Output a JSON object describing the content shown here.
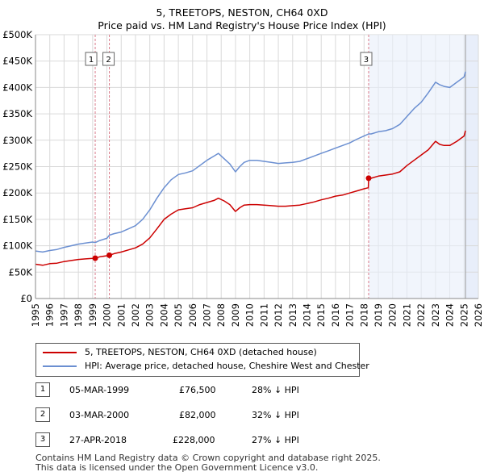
{
  "title_line1": "5, TREETOPS, NESTON, CH64 0XD",
  "title_line2": "Price paid vs. HM Land Registry's House Price Index (HPI)",
  "colors": {
    "price_paid": "#cc0000",
    "hpi": "#6b8fd1",
    "shade": "#e8eefa",
    "grid": "#d9d9d9",
    "marker_line": "#d97a8a"
  },
  "legend": {
    "series1_label": "5, TREETOPS, NESTON, CH64 0XD (detached house)",
    "series2_label": "HPI: Average price, detached house, Cheshire West and Chester"
  },
  "transactions": [
    {
      "id": "1",
      "date": "05-MAR-1999",
      "price": "£76,500",
      "delta": "28% ↓ HPI"
    },
    {
      "id": "2",
      "date": "03-MAR-2000",
      "price": "£82,000",
      "delta": "32% ↓ HPI"
    },
    {
      "id": "3",
      "date": "27-APR-2018",
      "price": "£228,000",
      "delta": "27% ↓ HPI"
    }
  ],
  "footer": {
    "line1": "Contains HM Land Registry data © Crown copyright and database right 2025.",
    "line2": "This data is licensed under the Open Government Licence v3.0."
  },
  "chart_data": {
    "type": "line",
    "title": "5, TREETOPS, NESTON, CH64 0XD — Price paid vs. HM Land Registry's House Price Index (HPI)",
    "xlabel": "",
    "ylabel": "",
    "xlim": [
      1995,
      2026
    ],
    "ylim": [
      0,
      500000
    ],
    "x_ticks": [
      1995,
      1996,
      1997,
      1998,
      1999,
      2000,
      2001,
      2002,
      2003,
      2004,
      2005,
      2006,
      2007,
      2008,
      2009,
      2010,
      2011,
      2012,
      2013,
      2014,
      2015,
      2016,
      2017,
      2018,
      2019,
      2020,
      2021,
      2022,
      2023,
      2024,
      2025,
      2026
    ],
    "y_ticks": [
      {
        "value": 0,
        "label": "£0"
      },
      {
        "value": 50000,
        "label": "£50K"
      },
      {
        "value": 100000,
        "label": "£100K"
      },
      {
        "value": 150000,
        "label": "£150K"
      },
      {
        "value": 200000,
        "label": "£200K"
      },
      {
        "value": 250000,
        "label": "£250K"
      },
      {
        "value": 300000,
        "label": "£300K"
      },
      {
        "value": 350000,
        "label": "£350K"
      },
      {
        "value": 400000,
        "label": "£400K"
      },
      {
        "value": 450000,
        "label": "£450K"
      },
      {
        "value": 500000,
        "label": "£500K"
      }
    ],
    "grid": true,
    "shaded_periods": [
      [
        2025.1,
        2026
      ]
    ],
    "projection_start": 2025.1,
    "sale_markers": [
      {
        "label": "1",
        "x": 1999.18,
        "y": 76500
      },
      {
        "label": "2",
        "x": 2000.17,
        "y": 82000
      },
      {
        "label": "3",
        "x": 2018.32,
        "y": 228000
      }
    ],
    "series": [
      {
        "name": "HPI: Average price, detached house, Cheshire West and Chester",
        "x": [
          1995.0,
          1995.5,
          1996.0,
          1996.5,
          1997.0,
          1997.5,
          1998.0,
          1998.5,
          1999.0,
          1999.18,
          1999.5,
          2000.0,
          2000.17,
          2000.5,
          2001.0,
          2001.5,
          2002.0,
          2002.5,
          2003.0,
          2003.5,
          2004.0,
          2004.5,
          2005.0,
          2005.5,
          2006.0,
          2006.5,
          2007.0,
          2007.5,
          2007.8,
          2008.2,
          2008.6,
          2009.0,
          2009.3,
          2009.6,
          2010.0,
          2010.5,
          2011.0,
          2011.5,
          2012.0,
          2012.5,
          2013.0,
          2013.5,
          2014.0,
          2014.5,
          2015.0,
          2015.5,
          2016.0,
          2016.5,
          2017.0,
          2017.5,
          2018.0,
          2018.32,
          2018.5,
          2019.0,
          2019.5,
          2020.0,
          2020.5,
          2021.0,
          2021.5,
          2022.0,
          2022.5,
          2023.0,
          2023.3,
          2023.6,
          2024.0,
          2024.5,
          2025.0,
          2025.1
        ],
        "y": [
          90000,
          88000,
          91000,
          93000,
          97000,
          100000,
          103000,
          105000,
          107000,
          106000,
          110000,
          114000,
          120000,
          123000,
          126000,
          132000,
          138000,
          150000,
          168000,
          190000,
          210000,
          225000,
          235000,
          238000,
          242000,
          252000,
          262000,
          270000,
          275000,
          265000,
          255000,
          240000,
          250000,
          258000,
          262000,
          262000,
          260000,
          258000,
          256000,
          257000,
          258000,
          260000,
          265000,
          270000,
          275000,
          280000,
          285000,
          290000,
          295000,
          302000,
          308000,
          312000,
          312000,
          316000,
          318000,
          322000,
          330000,
          345000,
          360000,
          372000,
          390000,
          410000,
          405000,
          402000,
          400000,
          410000,
          420000,
          430000
        ]
      },
      {
        "name": "5, TREETOPS, NESTON, CH64 0XD (detached house)",
        "x": [
          1995.0,
          1995.5,
          1996.0,
          1996.5,
          1997.0,
          1997.5,
          1998.0,
          1998.5,
          1999.0,
          1999.18,
          1999.5,
          2000.0,
          2000.17,
          2000.5,
          2001.0,
          2001.5,
          2002.0,
          2002.5,
          2003.0,
          2003.5,
          2004.0,
          2004.5,
          2005.0,
          2005.5,
          2006.0,
          2006.5,
          2007.0,
          2007.5,
          2007.8,
          2008.2,
          2008.6,
          2009.0,
          2009.3,
          2009.6,
          2010.0,
          2010.5,
          2011.0,
          2011.5,
          2012.0,
          2012.5,
          2013.0,
          2013.5,
          2014.0,
          2014.5,
          2015.0,
          2015.5,
          2016.0,
          2016.5,
          2017.0,
          2017.5,
          2018.0,
          2018.3,
          2018.32,
          2018.5,
          2019.0,
          2019.5,
          2020.0,
          2020.5,
          2021.0,
          2021.5,
          2022.0,
          2022.5,
          2023.0,
          2023.3,
          2023.6,
          2024.0,
          2024.5,
          2025.0,
          2025.1
        ],
        "y": [
          65000,
          63000,
          66000,
          67000,
          70000,
          72000,
          74000,
          75000,
          76000,
          76500,
          79000,
          81000,
          82000,
          85000,
          88000,
          92000,
          96000,
          103000,
          115000,
          132000,
          150000,
          160000,
          168000,
          170000,
          172000,
          178000,
          182000,
          186000,
          190000,
          185000,
          178000,
          165000,
          172000,
          177000,
          178000,
          178000,
          177000,
          176000,
          175000,
          175000,
          176000,
          177000,
          180000,
          183000,
          187000,
          190000,
          194000,
          196000,
          200000,
          204000,
          208000,
          210000,
          228000,
          228000,
          232000,
          234000,
          236000,
          240000,
          252000,
          262000,
          272000,
          282000,
          298000,
          292000,
          290000,
          290000,
          298000,
          308000,
          318000
        ]
      }
    ]
  }
}
